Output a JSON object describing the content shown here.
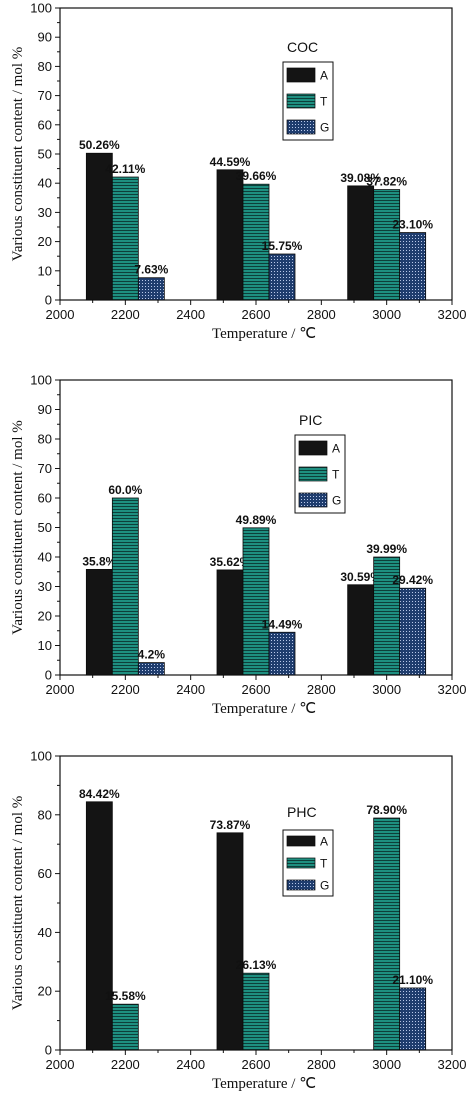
{
  "chart_data": [
    {
      "type": "bar",
      "x_positions": [
        2200,
        2600,
        3000
      ],
      "series": [
        {
          "name": "A",
          "color": "#141414",
          "pattern": "solid",
          "values": [
            50.26,
            44.59,
            39.08
          ],
          "labels": [
            "50.26%",
            "44.59%",
            "39.08%"
          ]
        },
        {
          "name": "T",
          "color": "#1e8f80",
          "pattern": "horizontal-lines",
          "values": [
            42.11,
            39.66,
            37.82
          ],
          "labels": [
            "42.11%",
            "39.66%",
            "37.82%"
          ]
        },
        {
          "name": "G",
          "color": "#1f3d6e",
          "pattern": "dots",
          "values": [
            7.63,
            15.75,
            23.1
          ],
          "labels": [
            "7.63%",
            "15.75%",
            "23.10%"
          ]
        }
      ],
      "legend_title": "COC",
      "legend_placement": "top-center",
      "xlabel": "Temperature  /  ℃",
      "ylabel": "Various constituent content / mol %",
      "xlim": [
        2000,
        3200
      ],
      "ylim": [
        0,
        100
      ],
      "xticks": [
        2000,
        2200,
        2400,
        2600,
        2800,
        3000,
        3200
      ],
      "yticks": [
        0,
        10,
        20,
        30,
        40,
        50,
        60,
        70,
        80,
        90,
        100
      ],
      "grid": false
    },
    {
      "type": "bar",
      "x_positions": [
        2200,
        2600,
        3000
      ],
      "series": [
        {
          "name": "A",
          "color": "#141414",
          "pattern": "solid",
          "values": [
            35.8,
            35.62,
            30.59
          ],
          "labels": [
            "35.8%",
            "35.62%",
            "30.59%"
          ]
        },
        {
          "name": "T",
          "color": "#1e8f80",
          "pattern": "horizontal-lines",
          "values": [
            60.0,
            49.89,
            39.99
          ],
          "labels": [
            "60.0%",
            "49.89%",
            "39.99%"
          ]
        },
        {
          "name": "G",
          "color": "#1f3d6e",
          "pattern": "dots",
          "values": [
            4.2,
            14.49,
            29.42
          ],
          "labels": [
            "4.2%",
            "14.49%",
            "29.42%"
          ]
        }
      ],
      "legend_title": "PIC",
      "legend_placement": "top-center",
      "xlabel": "Temperature  /  ℃",
      "ylabel": "Various constituent content / mol %",
      "xlim": [
        2000,
        3200
      ],
      "ylim": [
        0,
        100
      ],
      "xticks": [
        2000,
        2200,
        2400,
        2600,
        2800,
        3000,
        3200
      ],
      "yticks": [
        0,
        10,
        20,
        30,
        40,
        50,
        60,
        70,
        80,
        90,
        100
      ],
      "grid": false
    },
    {
      "type": "bar",
      "x_positions": [
        2200,
        2600,
        3000
      ],
      "series": [
        {
          "name": "A",
          "color": "#141414",
          "pattern": "solid",
          "values": [
            84.42,
            73.87,
            null
          ],
          "labels": [
            "84.42%",
            "73.87%",
            ""
          ]
        },
        {
          "name": "T",
          "color": "#1e8f80",
          "pattern": "horizontal-lines",
          "values": [
            15.58,
            26.13,
            78.9
          ],
          "labels": [
            "15.58%",
            "26.13%",
            "78.90%"
          ]
        },
        {
          "name": "G",
          "color": "#1f3d6e",
          "pattern": "dots",
          "values": [
            null,
            null,
            21.1
          ],
          "labels": [
            "",
            "",
            "21.10%"
          ]
        }
      ],
      "legend_title": "PHC",
      "legend_placement": "top-center",
      "xlabel": "Temperature  /  ℃",
      "ylabel": "Various constituent content / mol %",
      "xlim": [
        2000,
        3200
      ],
      "ylim": [
        0,
        100
      ],
      "xticks": [
        2000,
        2200,
        2400,
        2600,
        2800,
        3000,
        3200
      ],
      "yticks": [
        0,
        20,
        40,
        60,
        80,
        100
      ],
      "grid": false
    }
  ]
}
